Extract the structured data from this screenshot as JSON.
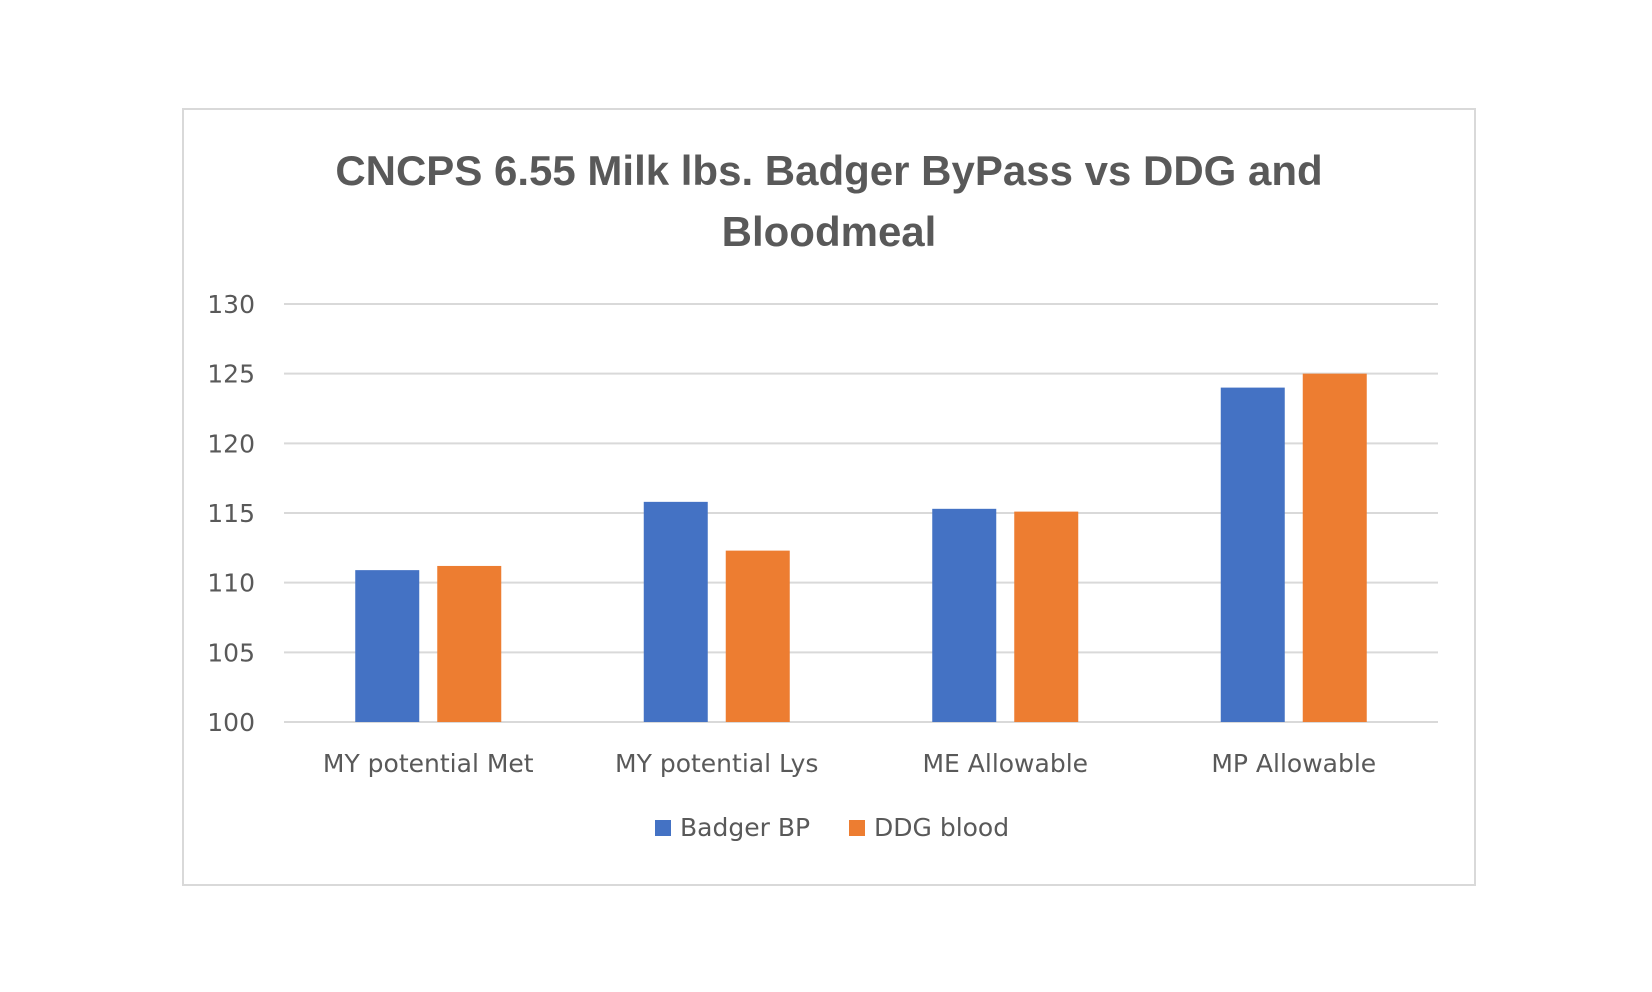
{
  "chart_data": {
    "type": "bar",
    "title_lines": [
      "CNCPS 6.55 Milk lbs. Badger ByPass vs DDG and",
      "Bloodmeal"
    ],
    "categories": [
      "MY potential Met",
      "MY potential Lys",
      "ME Allowable",
      "MP Allowable"
    ],
    "series": [
      {
        "name": "Badger BP",
        "color": "#4472c4",
        "values": [
          110.9,
          115.8,
          115.3,
          124.0
        ]
      },
      {
        "name": "DDG blood",
        "color": "#ed7d31",
        "values": [
          111.2,
          112.3,
          115.1,
          125.0
        ]
      }
    ],
    "ylim": [
      100,
      130
    ],
    "yticks": [
      100,
      105,
      110,
      115,
      120,
      125,
      130
    ],
    "grid": true,
    "legend_position": "bottom"
  }
}
